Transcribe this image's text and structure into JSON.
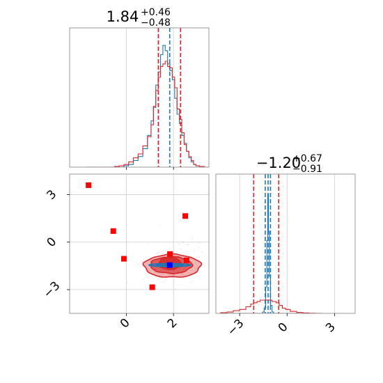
{
  "colors": {
    "blue": "#1f77b4",
    "red": "#d62728",
    "marker_red": "#ff0000",
    "marker_blue": "#0000ff",
    "grid": "#cccccc",
    "frame": "#808080"
  },
  "chart_data": [
    {
      "type": "histogram",
      "panel": "param1-marginal",
      "title_value": "1.84",
      "title_plus": "+0.46",
      "title_minus": "−0.48",
      "xlim": [
        -2.4,
        3.5
      ],
      "grid": true,
      "bin_centers": [
        -1.6,
        -1.4,
        -1.2,
        -1.0,
        -0.8,
        -0.6,
        -0.4,
        -0.2,
        0.0,
        0.2,
        0.4,
        0.6,
        0.8,
        1.0,
        1.1,
        1.2,
        1.3,
        1.4,
        1.5,
        1.6,
        1.7,
        1.8,
        1.9,
        2.0,
        2.1,
        2.2,
        2.3,
        2.4,
        2.5,
        2.6,
        2.7,
        2.8,
        2.9,
        3.0,
        3.2,
        3.4
      ],
      "series": [
        {
          "color": "blue",
          "values": [
            0,
            0,
            0,
            0,
            0,
            0,
            0,
            0,
            0.01,
            0.02,
            0.05,
            0.08,
            0.14,
            0.24,
            0.35,
            0.45,
            0.62,
            0.72,
            0.85,
            0.92,
            0.88,
            0.78,
            0.73,
            0.66,
            0.52,
            0.4,
            0.33,
            0.24,
            0.18,
            0.12,
            0.07,
            0.04,
            0.02,
            0.01,
            0.005,
            0
          ],
          "quantile_lines": [
            1.36,
            1.84,
            2.3
          ]
        },
        {
          "color": "red",
          "values": [
            0,
            0,
            0,
            0,
            0,
            0,
            0.005,
            0.01,
            0.02,
            0.04,
            0.07,
            0.1,
            0.16,
            0.23,
            0.32,
            0.46,
            0.58,
            0.68,
            0.76,
            0.78,
            0.8,
            0.76,
            0.75,
            0.68,
            0.6,
            0.44,
            0.36,
            0.26,
            0.17,
            0.12,
            0.08,
            0.05,
            0.02,
            0.01,
            0.005,
            0
          ],
          "quantile_lines": [
            1.36,
            2.3
          ]
        }
      ]
    },
    {
      "type": "contour-scatter",
      "panel": "param1-vs-param2",
      "xlim": [
        -2.4,
        3.5
      ],
      "ylim": [
        -4.5,
        4.3
      ],
      "xticks": [
        "0",
        "2"
      ],
      "yticks": [
        "3",
        "0",
        "−3"
      ],
      "xtick_values": [
        0,
        2
      ],
      "ytick_values": [
        3,
        0,
        -3
      ],
      "grid": true,
      "red_contours": [
        {
          "cx": 1.95,
          "cy": -1.5,
          "rx": 2.4,
          "ry": 1.45,
          "fill_opacity": 0.35
        },
        {
          "cx": 1.9,
          "cy": -1.45,
          "rx": 1.75,
          "ry": 1.05,
          "fill_opacity": 0.6
        },
        {
          "cx": 1.85,
          "cy": -1.35,
          "rx": 0.95,
          "ry": 0.75,
          "fill_opacity": 0.85
        }
      ],
      "blue_contours": [
        {
          "cx": 1.84,
          "cy": -1.45,
          "rx": 1.75,
          "ry": 0.18
        },
        {
          "cx": 1.84,
          "cy": -1.45,
          "rx": 1.1,
          "ry": 0.12
        }
      ],
      "red_markers": [
        {
          "x": -1.6,
          "y": 3.6
        },
        {
          "x": -0.55,
          "y": 0.7
        },
        {
          "x": -0.1,
          "y": -1.05
        },
        {
          "x": 2.5,
          "y": 1.65
        },
        {
          "x": 1.1,
          "y": -2.85
        },
        {
          "x": 1.85,
          "y": -0.75
        },
        {
          "x": 2.55,
          "y": -1.15
        }
      ],
      "blue_markers": [
        {
          "x": 1.84,
          "y": -1.45
        }
      ]
    },
    {
      "type": "histogram",
      "panel": "param2-marginal",
      "title_value": "−1.20",
      "title_plus": "+0.67",
      "title_minus": "−0.91",
      "xlim": [
        -4.5,
        4.3
      ],
      "xticks": [
        "−3",
        "0",
        "3"
      ],
      "xtick_values": [
        -3,
        0,
        3
      ],
      "grid": true,
      "bin_centers": [
        -4.0,
        -3.6,
        -3.2,
        -2.8,
        -2.4,
        -2.2,
        -2.0,
        -1.8,
        -1.6,
        -1.5,
        -1.4,
        -1.3,
        -1.25,
        -1.2,
        -1.15,
        -1.1,
        -1.0,
        -0.9,
        -0.8,
        -0.6,
        -0.4,
        -0.2,
        0.0,
        0.4,
        0.8,
        1.2,
        1.6,
        2.0
      ],
      "series": [
        {
          "color": "blue",
          "values": [
            0,
            0,
            0,
            0,
            0,
            0,
            0,
            0,
            0,
            0.01,
            0.04,
            0.2,
            0.55,
            0.9,
            0.62,
            0.28,
            0.06,
            0.01,
            0,
            0,
            0,
            0,
            0,
            0,
            0,
            0,
            0,
            0
          ],
          "quantile_lines": [
            -1.38,
            -1.2,
            -1.05
          ]
        },
        {
          "color": "red",
          "values": [
            0.005,
            0.01,
            0.02,
            0.03,
            0.05,
            0.07,
            0.08,
            0.09,
            0.1,
            0.1,
            0.1,
            0.1,
            0.1,
            0.1,
            0.1,
            0.1,
            0.1,
            0.09,
            0.09,
            0.08,
            0.06,
            0.04,
            0.03,
            0.015,
            0.007,
            0.003,
            0.001,
            0
          ],
          "quantile_lines": [
            -2.11,
            -0.53
          ]
        }
      ]
    }
  ]
}
